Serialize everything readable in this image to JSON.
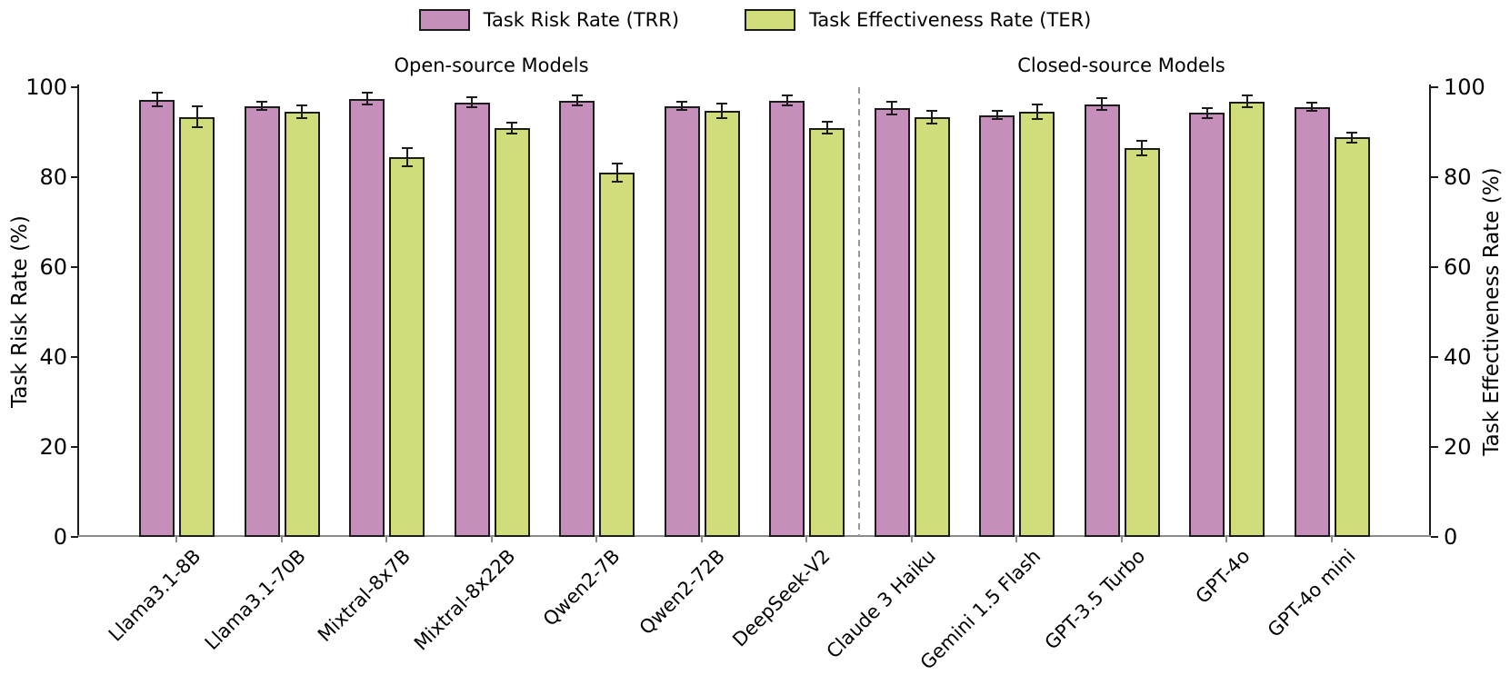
{
  "chart_data": {
    "type": "bar",
    "title": "",
    "categories": [
      "Llama3.1-8B",
      "Llama3.1-70B",
      "Mixtral-8x7B",
      "Mixtral-8x22B",
      "Qwen2-7B",
      "Qwen2-72B",
      "DeepSeek-V2",
      "Claude 3 Haiku",
      "Gemini 1.5 Flash",
      "GPT-3.5 Turbo",
      "GPT-4o",
      "GPT-4o mini"
    ],
    "series": [
      {
        "name": "Task Risk Rate (TRR)",
        "color": "#c58ebb",
        "values": [
          97.2,
          95.8,
          97.4,
          96.6,
          97.0,
          95.8,
          97.0,
          95.4,
          93.8,
          96.2,
          94.3,
          95.6
        ],
        "errors": [
          1.5,
          0.9,
          1.3,
          1.1,
          1.1,
          0.9,
          1.1,
          1.4,
          0.9,
          1.3,
          1.1,
          0.9
        ]
      },
      {
        "name": "Task Effectiveness Rate (TER)",
        "color": "#d0dd7a",
        "values": [
          93.4,
          94.5,
          84.4,
          90.9,
          81.0,
          94.7,
          91.0,
          93.4,
          94.5,
          86.4,
          96.8,
          88.8
        ],
        "errors": [
          2.3,
          1.4,
          2.0,
          1.3,
          2.0,
          1.6,
          1.3,
          1.4,
          1.6,
          1.6,
          1.3,
          1.1
        ]
      }
    ],
    "sections": [
      {
        "label": "Open-source Models",
        "start": 0,
        "end": 6
      },
      {
        "label": "Closed-source Models",
        "start": 7,
        "end": 11
      }
    ],
    "divider_after_index": 6,
    "ylabel_left": "Task Risk Rate (%)",
    "ylabel_right": "Task Effectiveness Rate (%)",
    "yticks": [
      0,
      20,
      40,
      60,
      80,
      100
    ],
    "ylim": [
      0,
      100
    ],
    "grid": false,
    "legend_position": "top-center",
    "bar_edge_color": "#1c1c1c",
    "error_bar_color": "#1c1c1c",
    "divider_color": "#999999"
  }
}
